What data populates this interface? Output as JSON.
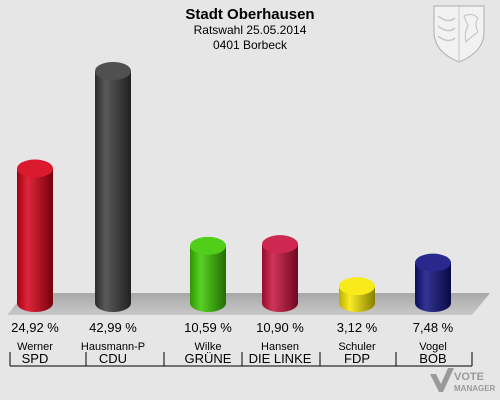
{
  "header": {
    "title": "Stadt Oberhausen",
    "subtitle_line1": "Ratswahl 25.05.2014",
    "subtitle_line2": "0401 Borbeck"
  },
  "watermark": {
    "line1": "VOTE",
    "line2": "MANAGER"
  },
  "colors": {
    "SPD": "#d80018",
    "CDU": "#3c3c3c",
    "GRÜNE": "#3cc800",
    "DIE LINKE": "#c8103c",
    "FDP": "#f8e800",
    "BOB": "#101080"
  },
  "chart_data": {
    "type": "bar",
    "title": "Stadt Oberhausen",
    "categories": [
      "SPD",
      "CDU",
      "GRÜNE",
      "DIE LINKE",
      "FDP",
      "BOB"
    ],
    "candidates": [
      "Werner",
      "Hausmann-P",
      "Wilke",
      "Hansen",
      "Schuler",
      "Vogel"
    ],
    "values": [
      24.92,
      42.99,
      10.59,
      10.9,
      3.12,
      7.48
    ],
    "value_labels": [
      "24,92 %",
      "42,99 %",
      "10,59 %",
      "10,90 %",
      "3,12 %",
      "7,48 %"
    ],
    "ylim": [
      0,
      42.99
    ],
    "grid": false,
    "legend": "none"
  }
}
